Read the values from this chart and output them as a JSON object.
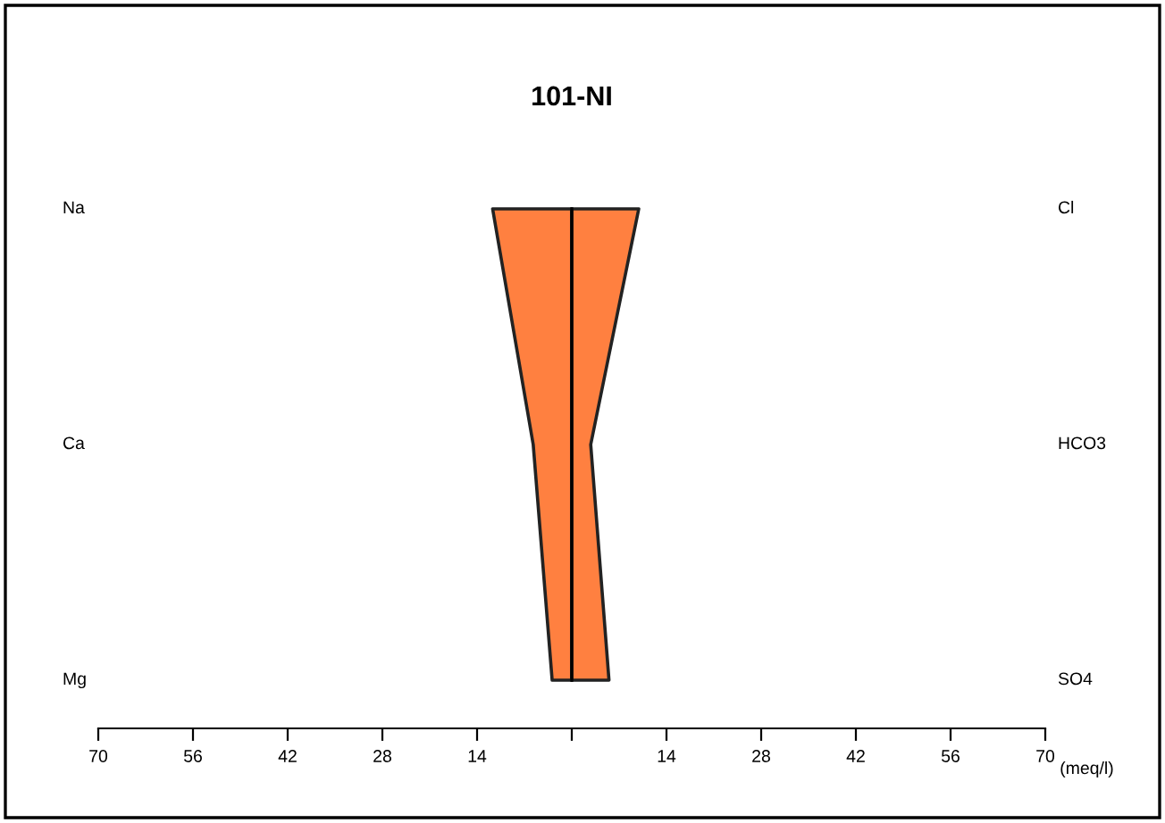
{
  "chart_data": {
    "type": "area",
    "orientation": "horizontal",
    "title": "101-NI",
    "xlabel": "(meq/l)",
    "categories": [
      "Na",
      "Ca",
      "Mg"
    ],
    "y2_categories": [
      "Cl",
      "HCO3",
      "SO4"
    ],
    "series": [
      {
        "values": [
          -11.7,
          -5.7,
          -2.9
        ]
      },
      {
        "values": [
          9.9,
          2.8,
          5.5
        ]
      }
    ],
    "color": "#ff8040",
    "ref_lines": [
      {
        "axis": "x",
        "value": 0,
        "color": "#000000"
      }
    ],
    "xlim": [
      -70,
      70
    ],
    "xticks": [
      {
        "value": -70,
        "label": "70"
      },
      {
        "value": -56,
        "label": "56"
      },
      {
        "value": -42,
        "label": "42"
      },
      {
        "value": -28,
        "label": "28"
      },
      {
        "value": -14,
        "label": "14"
      },
      {
        "value": 0,
        "label": null
      },
      14,
      28,
      42,
      56,
      70
    ],
    "grid": false,
    "legend": false
  }
}
